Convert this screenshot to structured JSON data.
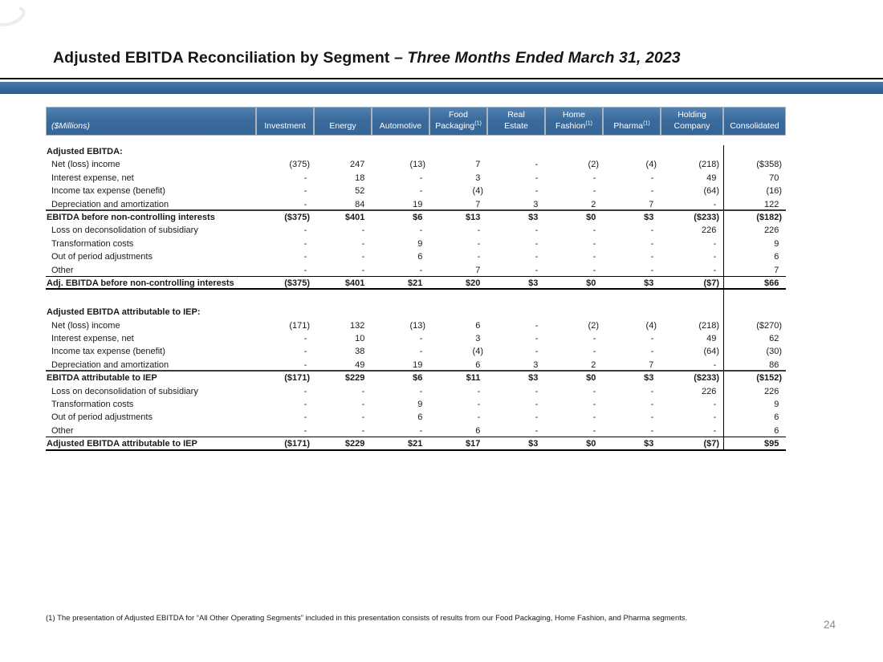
{
  "slide": {
    "title_main": "Adjusted EBITDA Reconciliation by Segment – ",
    "title_italic": "Three Months Ended March 31, 2023",
    "footnote": "(1) The presentation of Adjusted EBITDA for “All Other Operating Segments” included in this presentation consists of results from our Food Packaging, Home Fashion, and Pharma segments.",
    "page_number": "24"
  },
  "colors": {
    "accent_blue": "#3a6b9c",
    "accent_blue_dark": "#315e8e",
    "rule_black": "#151515",
    "page_number_gray": "#8a8a8a"
  },
  "table": {
    "unit_label": "($Millions)",
    "columns": [
      {
        "line1": "",
        "line2": "Investment",
        "sup": ""
      },
      {
        "line1": "",
        "line2": "Energy",
        "sup": ""
      },
      {
        "line1": "",
        "line2": "Automotive",
        "sup": ""
      },
      {
        "line1": "Food",
        "line2": "Packaging",
        "sup": "(1)"
      },
      {
        "line1": "Real",
        "line2": "Estate",
        "sup": ""
      },
      {
        "line1": "Home",
        "line2": "Fashion",
        "sup": "(1)"
      },
      {
        "line1": "",
        "line2": "Pharma",
        "sup": "(1)"
      },
      {
        "line1": "Holding",
        "line2": "Company",
        "sup": ""
      },
      {
        "line1": "",
        "line2": "Consolidated",
        "sup": ""
      }
    ],
    "rows": [
      {
        "style": "section",
        "label": "Adjusted EBITDA:",
        "values": [
          "",
          "",
          "",
          "",
          "",
          "",
          "",
          "",
          ""
        ]
      },
      {
        "style": "item",
        "label": "Net (loss) income",
        "values": [
          "(375)",
          "247",
          "(13)",
          "7",
          "-",
          "(2)",
          "(4)",
          "(218)",
          "($358)"
        ]
      },
      {
        "style": "item",
        "label": "Interest expense, net",
        "values": [
          "-",
          "18",
          "-",
          "3",
          "-",
          "-",
          "-",
          "49",
          "70"
        ]
      },
      {
        "style": "item",
        "label": "Income tax expense (benefit)",
        "values": [
          "-",
          "52",
          "-",
          "(4)",
          "-",
          "-",
          "-",
          "(64)",
          "(16)"
        ]
      },
      {
        "style": "item r2",
        "label": "Depreciation and amortization",
        "values": [
          "-",
          "84",
          "19",
          "7",
          "3",
          "2",
          "7",
          "-",
          "122"
        ]
      },
      {
        "style": "total",
        "label": "EBITDA before non-controlling interests",
        "values": [
          "($375)",
          "$401",
          "$6",
          "$13",
          "$3",
          "$0",
          "$3",
          "($233)",
          "($182)"
        ]
      },
      {
        "style": "item",
        "label": "Loss on deconsolidation of subsidiary",
        "values": [
          "-",
          "-",
          "-",
          "-",
          "-",
          "-",
          "-",
          "226",
          "226"
        ]
      },
      {
        "style": "item",
        "label": "Transformation costs",
        "values": [
          "-",
          "-",
          "9",
          "-",
          "-",
          "-",
          "-",
          "-",
          "9"
        ]
      },
      {
        "style": "item",
        "label": "Out of period adjustments",
        "values": [
          "-",
          "-",
          "6",
          "-",
          "-",
          "-",
          "-",
          "-",
          "6"
        ]
      },
      {
        "style": "item r1",
        "label": "Other",
        "values": [
          "-",
          "-",
          "-",
          "7",
          "-",
          "-",
          "-",
          "-",
          "7"
        ]
      },
      {
        "style": "total rf",
        "label": "Adj. EBITDA before non-controlling interests",
        "values": [
          "($375)",
          "$401",
          "$21",
          "$20",
          "$3",
          "$0",
          "$3",
          "($7)",
          "$66"
        ]
      },
      {
        "style": "gap",
        "label": "",
        "values": [
          "",
          "",
          "",
          "",
          "",
          "",
          "",
          "",
          ""
        ]
      },
      {
        "style": "section",
        "label": "Adjusted EBITDA attributable to IEP:",
        "values": [
          "",
          "",
          "",
          "",
          "",
          "",
          "",
          "",
          ""
        ]
      },
      {
        "style": "item",
        "label": "Net (loss) income",
        "values": [
          "(171)",
          "132",
          "(13)",
          "6",
          "-",
          "(2)",
          "(4)",
          "(218)",
          "($270)"
        ]
      },
      {
        "style": "item",
        "label": "Interest expense, net",
        "values": [
          "-",
          "10",
          "-",
          "3",
          "-",
          "-",
          "-",
          "49",
          "62"
        ]
      },
      {
        "style": "item",
        "label": "Income tax expense (benefit)",
        "values": [
          "-",
          "38",
          "-",
          "(4)",
          "-",
          "-",
          "-",
          "(64)",
          "(30)"
        ]
      },
      {
        "style": "item r2",
        "label": "Depreciation and amortization",
        "values": [
          "-",
          "49",
          "19",
          "6",
          "3",
          "2",
          "7",
          "-",
          "86"
        ]
      },
      {
        "style": "total",
        "label": "EBITDA attributable to IEP",
        "values": [
          "($171)",
          "$229",
          "$6",
          "$11",
          "$3",
          "$0",
          "$3",
          "($233)",
          "($152)"
        ]
      },
      {
        "style": "item",
        "label": "Loss on deconsolidation of subsidiary",
        "values": [
          "-",
          "-",
          "-",
          "-",
          "-",
          "-",
          "-",
          "226",
          "226"
        ]
      },
      {
        "style": "item",
        "label": "Transformation costs",
        "values": [
          "-",
          "-",
          "9",
          "-",
          "-",
          "-",
          "-",
          "-",
          "9"
        ]
      },
      {
        "style": "item",
        "label": "Out of period adjustments",
        "values": [
          "-",
          "-",
          "6",
          "-",
          "-",
          "-",
          "-",
          "-",
          "6"
        ]
      },
      {
        "style": "item r1",
        "label": "Other",
        "values": [
          "-",
          "-",
          "-",
          "6",
          "-",
          "-",
          "-",
          "-",
          "6"
        ]
      },
      {
        "style": "total rf",
        "label": "Adjusted EBITDA attributable to IEP",
        "values": [
          "($171)",
          "$229",
          "$21",
          "$17",
          "$3",
          "$0",
          "$3",
          "($7)",
          "$95"
        ]
      }
    ]
  }
}
